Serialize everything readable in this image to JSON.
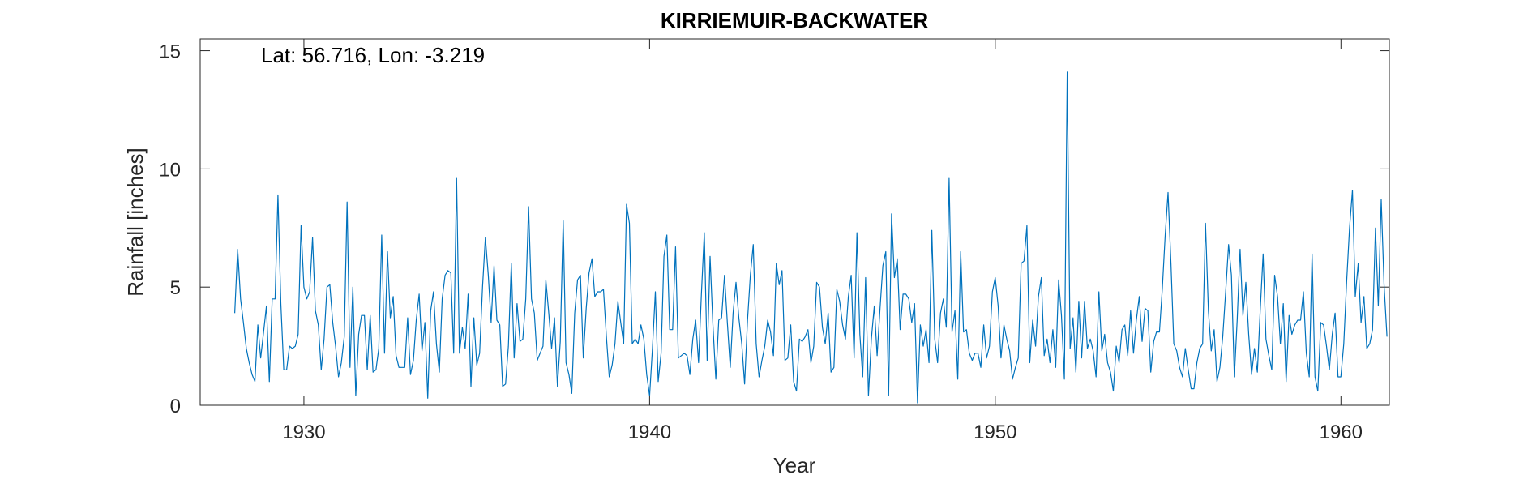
{
  "chart_data": {
    "type": "line",
    "title": "KIRRIEMUIR-BACKWATER",
    "annotation": "Lat: 56.716, Lon: -3.219",
    "xlabel": "Year",
    "ylabel": "Rainfall [inches]",
    "xlim": [
      1927,
      1961.4
    ],
    "ylim": [
      0,
      15.5
    ],
    "xticks": [
      1930,
      1940,
      1950,
      1960
    ],
    "yticks": [
      0,
      5,
      10,
      15
    ],
    "grid": false,
    "line_color": "#0072BD",
    "series": [
      {
        "x_start": 1928.0,
        "x_step": 0.08333,
        "values": [
          3.9,
          6.6,
          4.5,
          3.5,
          2.4,
          1.8,
          1.3,
          1.0,
          3.4,
          2.0,
          3.1,
          4.2,
          1.0,
          4.5,
          4.5,
          8.9,
          4.3,
          1.5,
          1.5,
          2.5,
          2.4,
          2.5,
          3.0,
          7.6,
          5.0,
          4.5,
          4.8,
          7.1,
          4.0,
          3.4,
          1.5,
          2.8,
          5.0,
          5.1,
          3.5,
          2.5,
          1.2,
          1.8,
          2.9,
          8.6,
          1.6,
          5.0,
          0.4,
          3.0,
          3.8,
          3.8,
          1.5,
          3.8,
          1.4,
          1.5,
          2.4,
          7.2,
          2.2,
          6.5,
          3.7,
          4.6,
          2.1,
          1.6,
          1.6,
          1.6,
          3.7,
          1.3,
          1.9,
          3.6,
          4.7,
          2.3,
          3.5,
          0.3,
          4.0,
          4.8,
          2.6,
          1.4,
          4.5,
          5.5,
          5.7,
          5.6,
          2.2,
          9.6,
          2.2,
          3.3,
          2.4,
          4.7,
          0.8,
          3.7,
          1.7,
          2.2,
          5.0,
          7.1,
          5.5,
          3.5,
          5.9,
          3.6,
          3.4,
          0.8,
          0.9,
          2.5,
          6.0,
          2.0,
          4.3,
          2.7,
          2.8,
          4.5,
          8.4,
          4.5,
          3.9,
          1.9,
          2.2,
          2.5,
          5.3,
          3.9,
          2.4,
          3.7,
          0.8,
          2.7,
          7.8,
          1.8,
          1.3,
          0.5,
          3.9,
          5.3,
          5.5,
          2.0,
          4.1,
          5.6,
          6.2,
          4.6,
          4.8,
          4.8,
          4.9,
          2.9,
          1.2,
          1.7,
          2.6,
          4.4,
          3.5,
          2.6,
          8.5,
          7.7,
          2.6,
          2.8,
          2.6,
          3.4,
          2.8,
          1.3,
          0.4,
          2.4,
          4.8,
          1.0,
          2.2,
          6.3,
          7.2,
          3.2,
          3.2,
          6.7,
          2.0,
          2.1,
          2.2,
          2.1,
          1.3,
          2.8,
          3.6,
          1.8,
          4.7,
          7.3,
          1.9,
          6.3,
          3.4,
          1.1,
          3.6,
          3.7,
          5.5,
          3.5,
          1.6,
          3.9,
          5.2,
          3.7,
          2.6,
          0.9,
          3.6,
          5.5,
          6.8,
          2.6,
          1.2,
          1.9,
          2.5,
          3.6,
          3.1,
          2.1,
          6.0,
          5.1,
          5.7,
          1.9,
          2.0,
          3.4,
          1.0,
          0.6,
          2.8,
          2.7,
          2.9,
          3.2,
          1.8,
          2.5,
          5.2,
          5.0,
          3.3,
          2.6,
          3.9,
          1.4,
          1.6,
          4.9,
          4.4,
          3.4,
          2.8,
          4.6,
          5.5,
          2.0,
          7.3,
          3.0,
          1.2,
          5.4,
          0.4,
          2.8,
          4.2,
          2.1,
          4.1,
          5.9,
          6.5,
          0.4,
          8.1,
          5.4,
          6.2,
          3.2,
          4.7,
          4.7,
          4.5,
          3.5,
          4.3,
          0.1,
          3.4,
          2.5,
          3.2,
          1.8,
          7.4,
          2.8,
          1.8,
          3.9,
          4.5,
          3.3,
          9.6,
          3.1,
          4.0,
          1.1,
          6.5,
          3.1,
          3.2,
          2.2,
          1.9,
          2.2,
          2.2,
          1.6,
          3.4,
          2.0,
          2.5,
          4.8,
          5.4,
          4.2,
          2.0,
          3.4,
          2.8,
          2.3,
          1.1,
          1.6,
          2.0,
          6.0,
          6.1,
          7.6,
          1.8,
          3.6,
          2.5,
          4.6,
          5.4,
          2.1,
          2.8,
          1.8,
          3.2,
          1.6,
          5.3,
          3.8,
          1.1,
          14.1,
          2.4,
          3.7,
          1.4,
          4.4,
          2.0,
          4.4,
          2.4,
          2.8,
          2.3,
          1.2,
          4.8,
          2.3,
          3.0,
          1.8,
          1.4,
          0.6,
          2.5,
          1.8,
          3.2,
          3.4,
          2.1,
          4.0,
          2.2,
          3.6,
          4.6,
          2.7,
          4.1,
          4.0,
          1.4,
          2.7,
          3.1,
          3.1,
          4.9,
          7.2,
          9.0,
          6.0,
          2.6,
          2.3,
          1.6,
          1.2,
          2.4,
          1.5,
          0.7,
          0.7,
          1.8,
          2.4,
          2.6,
          7.7,
          4.0,
          2.3,
          3.2,
          1.0,
          1.6,
          2.9,
          4.8,
          6.8,
          5.5,
          1.2,
          3.6,
          6.6,
          3.8,
          5.2,
          3.0,
          1.3,
          2.4,
          1.4,
          4.0,
          6.4,
          2.8,
          2.1,
          1.5,
          5.5,
          4.6,
          2.6,
          4.3,
          1.0,
          3.8,
          3.0,
          3.4,
          3.6,
          3.6,
          4.8,
          2.2,
          1.2,
          6.4,
          1.2,
          0.6,
          3.5,
          3.4,
          2.5,
          1.5,
          3.0,
          3.9,
          1.2,
          1.2,
          2.6,
          5.2,
          7.5,
          9.1,
          4.6,
          6.0,
          3.5,
          4.6,
          2.4,
          2.6,
          3.2,
          7.5,
          4.2,
          8.7,
          5.1,
          2.9
        ]
      }
    ]
  }
}
